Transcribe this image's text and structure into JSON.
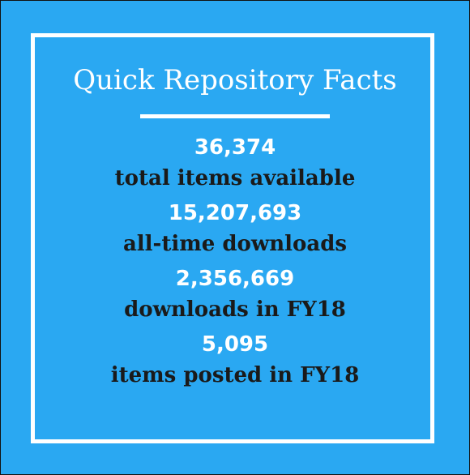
{
  "title": "Quick Repository Facts",
  "facts": [
    {
      "number": "36,374",
      "label": "total items available"
    },
    {
      "number": "15,207,693",
      "label": "all-time downloads"
    },
    {
      "number": "2,356,669",
      "label": "downloads in FY18"
    },
    {
      "number": "5,095",
      "label": "items posted in FY18"
    }
  ]
}
